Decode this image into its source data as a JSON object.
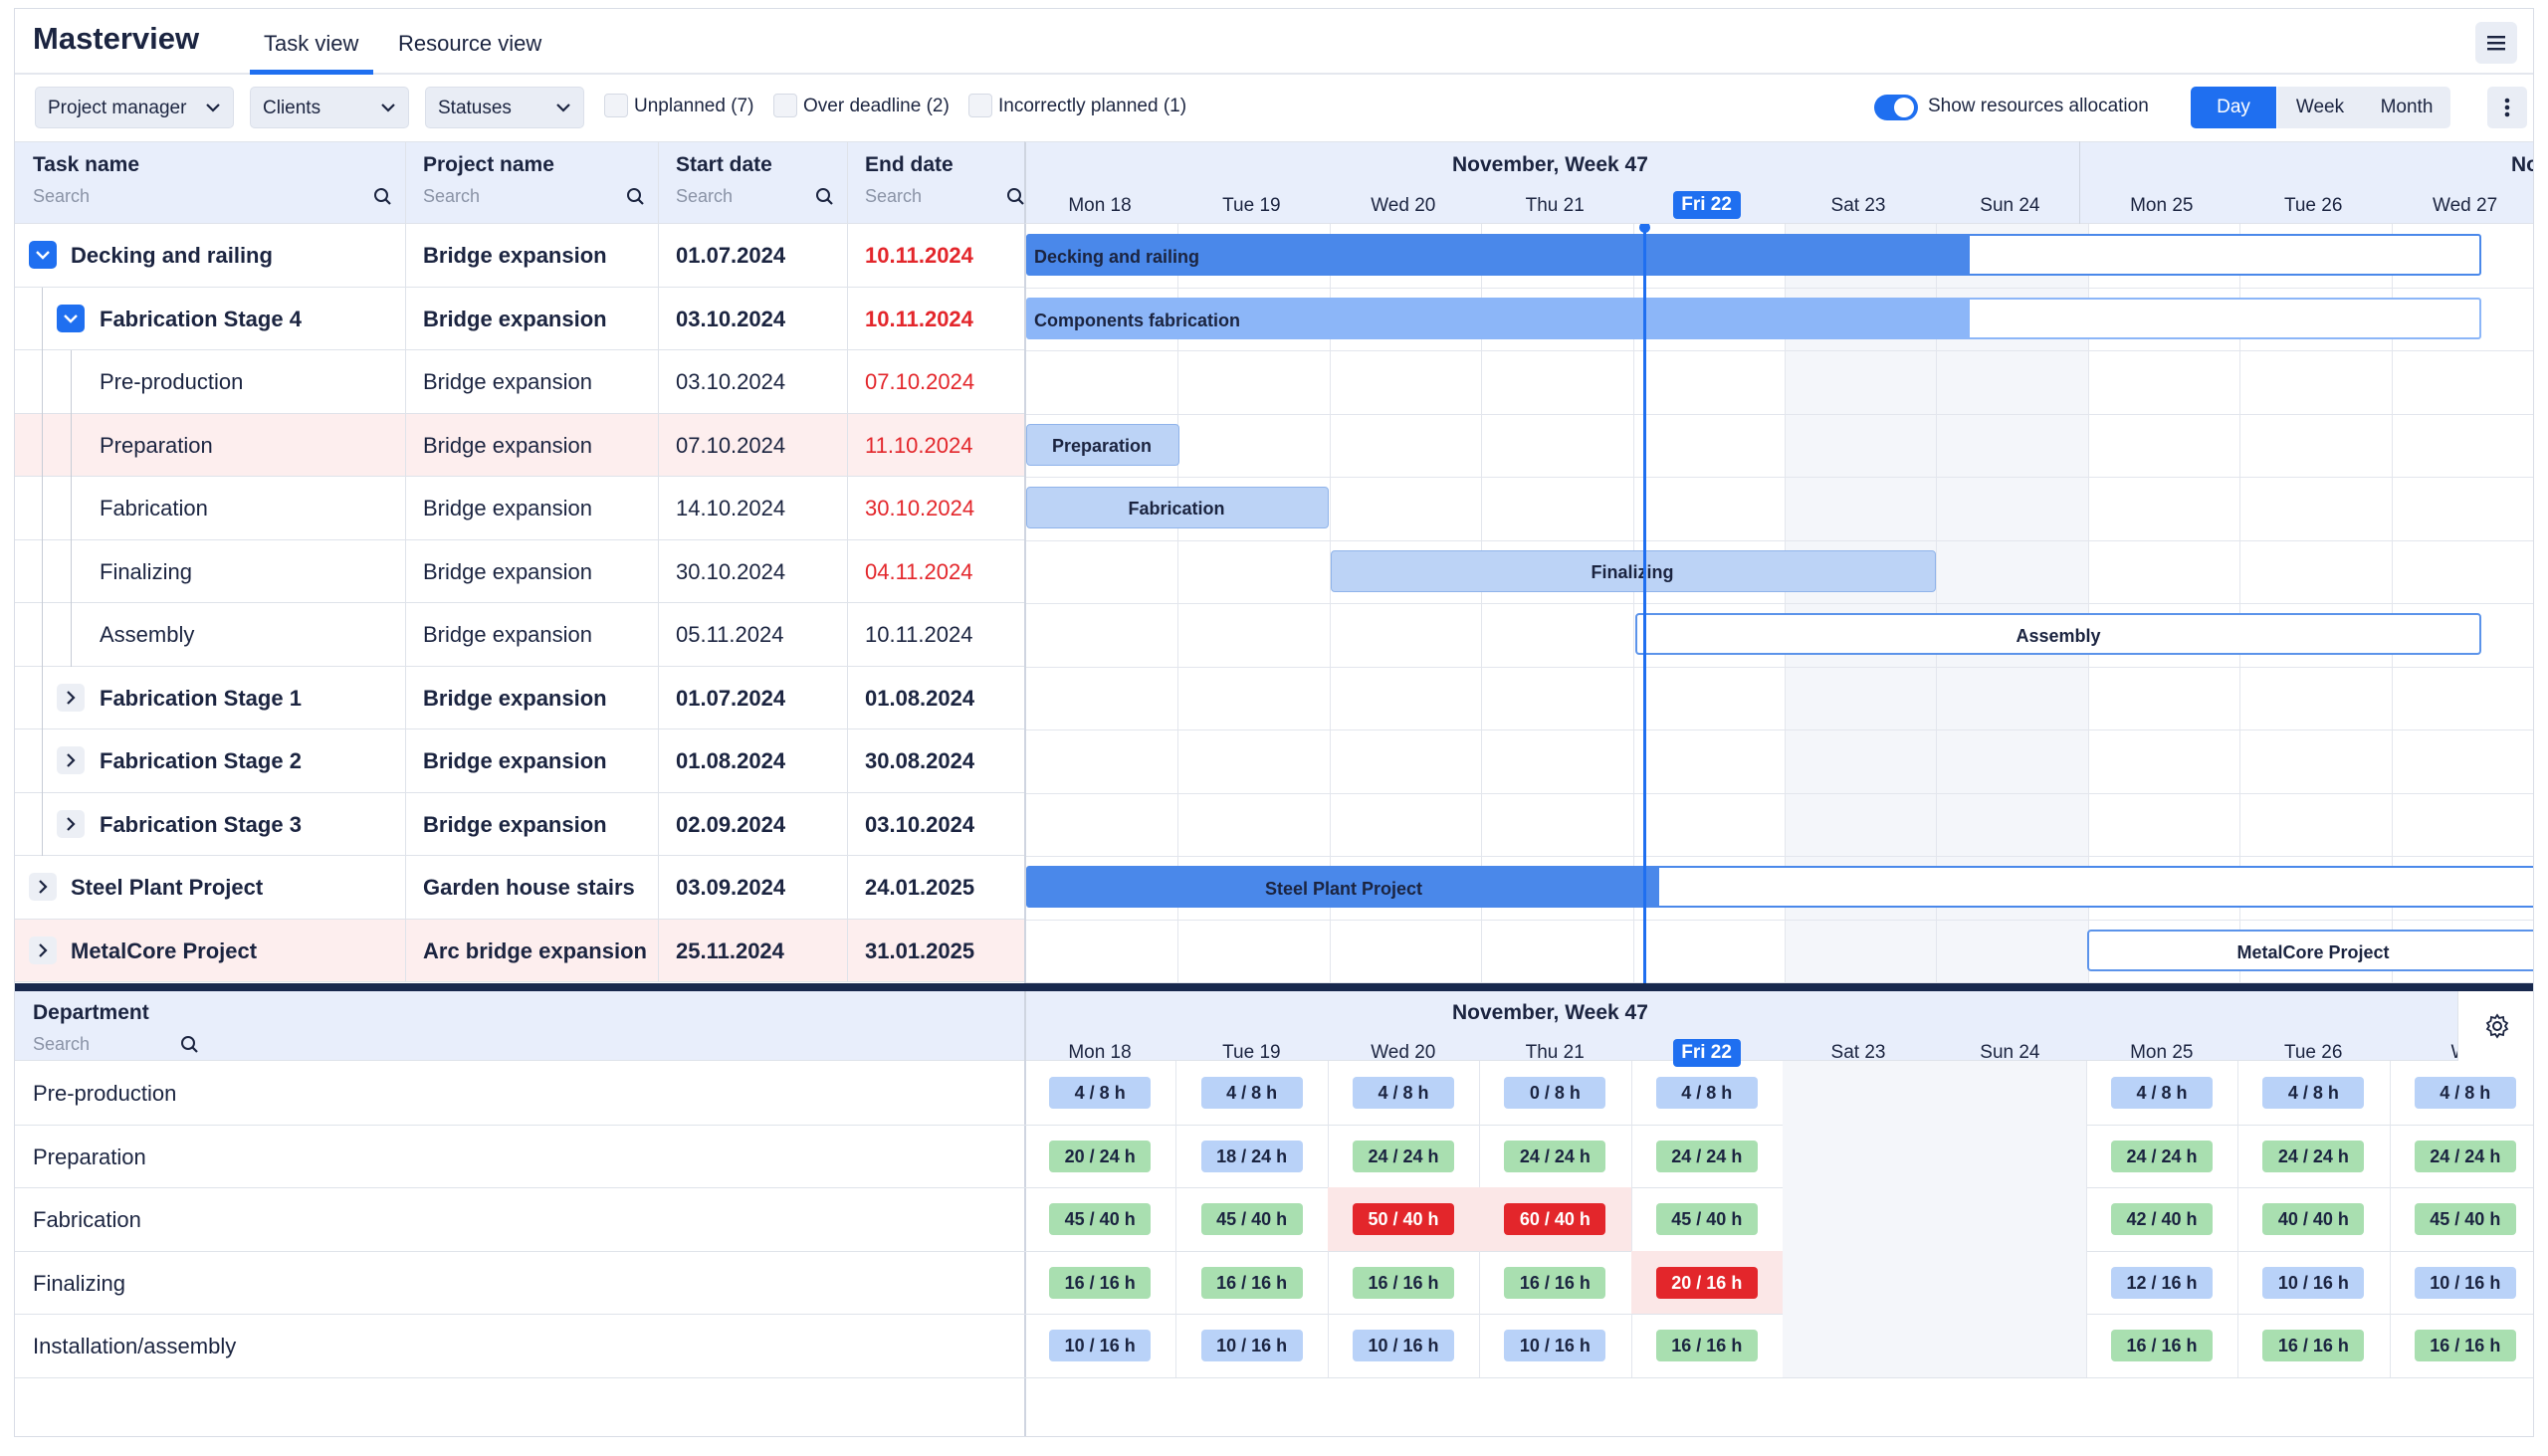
{
  "app": {
    "title": "Masterview"
  },
  "tabs": [
    {
      "label": "Task view",
      "active": true
    },
    {
      "label": "Resource view",
      "active": false
    }
  ],
  "toolbar": {
    "dropdowns": [
      {
        "label": "Project manager"
      },
      {
        "label": "Clients"
      },
      {
        "label": "Statuses"
      }
    ],
    "filters": [
      {
        "label": "Unplanned (7)"
      },
      {
        "label": "Over deadline (2)"
      },
      {
        "label": "Incorrectly planned (1)"
      }
    ],
    "toggle_label": "Show resources allocation",
    "toggle_on": true,
    "views": [
      {
        "label": "Day",
        "active": true
      },
      {
        "label": "Week",
        "active": false
      },
      {
        "label": "Month",
        "active": false
      }
    ]
  },
  "task_table": {
    "columns": [
      {
        "label": "Task name",
        "placeholder": "Search"
      },
      {
        "label": "Project name",
        "placeholder": "Search"
      },
      {
        "label": "Start date",
        "placeholder": "Search"
      },
      {
        "label": "End date",
        "placeholder": "Search"
      }
    ],
    "rows": [
      {
        "task": "Decking and railing",
        "project": "Bridge expansion",
        "start": "01.07.2024",
        "end": "10.11.2024",
        "level": 0,
        "expand": "open",
        "bold": true,
        "end_overdue": true,
        "highlight": false
      },
      {
        "task": "Fabrication Stage 4",
        "project": "Bridge expansion",
        "start": "03.10.2024",
        "end": "10.11.2024",
        "level": 1,
        "expand": "open",
        "bold": true,
        "end_overdue": true,
        "highlight": false
      },
      {
        "task": "Pre-production",
        "project": "Bridge expansion",
        "start": "03.10.2024",
        "end": "07.10.2024",
        "level": 2,
        "expand": "none",
        "bold": false,
        "end_overdue": true,
        "highlight": false
      },
      {
        "task": "Preparation",
        "project": "Bridge expansion",
        "start": "07.10.2024",
        "end": "11.10.2024",
        "level": 2,
        "expand": "none",
        "bold": false,
        "end_overdue": true,
        "highlight": true
      },
      {
        "task": "Fabrication",
        "project": "Bridge expansion",
        "start": "14.10.2024",
        "end": "30.10.2024",
        "level": 2,
        "expand": "none",
        "bold": false,
        "end_overdue": true,
        "highlight": false
      },
      {
        "task": "Finalizing",
        "project": "Bridge expansion",
        "start": "30.10.2024",
        "end": "04.11.2024",
        "level": 2,
        "expand": "none",
        "bold": false,
        "end_overdue": true,
        "highlight": false
      },
      {
        "task": "Assembly",
        "project": "Bridge expansion",
        "start": "05.11.2024",
        "end": "10.11.2024",
        "level": 2,
        "expand": "none",
        "bold": false,
        "end_overdue": false,
        "highlight": false
      },
      {
        "task": "Fabrication Stage 1",
        "project": "Bridge expansion",
        "start": "01.07.2024",
        "end": "01.08.2024",
        "level": 1,
        "expand": "closed",
        "bold": true,
        "end_overdue": false,
        "highlight": false
      },
      {
        "task": "Fabrication Stage 2",
        "project": "Bridge expansion",
        "start": "01.08.2024",
        "end": "30.08.2024",
        "level": 1,
        "expand": "closed",
        "bold": true,
        "end_overdue": false,
        "highlight": false
      },
      {
        "task": "Fabrication Stage 3",
        "project": "Bridge expansion",
        "start": "02.09.2024",
        "end": "03.10.2024",
        "level": 1,
        "expand": "closed",
        "bold": true,
        "end_overdue": false,
        "highlight": false
      },
      {
        "task": "Steel Plant Project",
        "project": "Garden house stairs",
        "start": "03.09.2024",
        "end": "24.01.2025",
        "level": 0,
        "expand": "closed",
        "bold": true,
        "end_overdue": false,
        "highlight": false
      },
      {
        "task": "MetalCore Project",
        "project": "Arc bridge expansion",
        "start": "25.11.2024",
        "end": "31.01.2025",
        "level": 0,
        "expand": "closed",
        "bold": true,
        "end_overdue": false,
        "highlight": true
      }
    ]
  },
  "timeline": {
    "week_label": "November, Week 47",
    "next_week_label": "No",
    "days": [
      "Mon 18",
      "Tue 19",
      "Wed 20",
      "Thu 21",
      "Fri 22",
      "Sat 23",
      "Sun 24",
      "Mon 25",
      "Tue 26",
      "Wed 27"
    ],
    "today": "Fri 22",
    "bars": [
      {
        "label": "Decking and railing",
        "row": 0,
        "style": "dark"
      },
      {
        "label": "Components fabrication",
        "row": 1,
        "style": "mid"
      },
      {
        "label": "Preparation",
        "row": 3,
        "style": "light"
      },
      {
        "label": "Fabrication",
        "row": 4,
        "style": "light"
      },
      {
        "label": "Finalizing",
        "row": 5,
        "style": "light"
      },
      {
        "label": "Assembly",
        "row": 6,
        "style": "outline"
      },
      {
        "label": "Steel Plant Project",
        "row": 10,
        "style": "dark"
      },
      {
        "label": "MetalCore Project",
        "row": 11,
        "style": "outline"
      }
    ]
  },
  "resources": {
    "column_label": "Department",
    "placeholder": "Search",
    "week_label": "November, Week 47",
    "days": [
      "Mon 18",
      "Tue 19",
      "Wed 20",
      "Thu 21",
      "Fri 22",
      "Sat 23",
      "Sun 24",
      "Mon 25",
      "Tue 26",
      "We"
    ],
    "departments": [
      {
        "name": "Pre-production",
        "cells": [
          {
            "t": "4 / 8 h",
            "c": "b"
          },
          {
            "t": "4 / 8 h",
            "c": "b"
          },
          {
            "t": "4 / 8 h",
            "c": "b"
          },
          {
            "t": "0 / 8 h",
            "c": "b"
          },
          {
            "t": "4 / 8 h",
            "c": "b"
          },
          null,
          null,
          {
            "t": "4 / 8 h",
            "c": "b"
          },
          {
            "t": "4 / 8 h",
            "c": "b"
          },
          {
            "t": "4 / 8 h",
            "c": "b"
          }
        ]
      },
      {
        "name": "Preparation",
        "cells": [
          {
            "t": "20 / 24 h",
            "c": "g"
          },
          {
            "t": "18 / 24 h",
            "c": "b"
          },
          {
            "t": "24 / 24 h",
            "c": "g"
          },
          {
            "t": "24 / 24 h",
            "c": "g"
          },
          {
            "t": "24 / 24 h",
            "c": "g"
          },
          null,
          null,
          {
            "t": "24 / 24 h",
            "c": "g"
          },
          {
            "t": "24 / 24 h",
            "c": "g"
          },
          {
            "t": "24 / 24 h",
            "c": "g"
          }
        ]
      },
      {
        "name": "Fabrication",
        "cells": [
          {
            "t": "45 / 40 h",
            "c": "g"
          },
          {
            "t": "45 / 40 h",
            "c": "g"
          },
          {
            "t": "50 / 40 h",
            "c": "r"
          },
          {
            "t": "60 / 40 h",
            "c": "r"
          },
          {
            "t": "45 / 40 h",
            "c": "g"
          },
          null,
          null,
          {
            "t": "42 / 40 h",
            "c": "g"
          },
          {
            "t": "40 / 40 h",
            "c": "g"
          },
          {
            "t": "45 / 40 h",
            "c": "g"
          }
        ]
      },
      {
        "name": "Finalizing",
        "cells": [
          {
            "t": "16 / 16 h",
            "c": "g"
          },
          {
            "t": "16 / 16 h",
            "c": "g"
          },
          {
            "t": "16 / 16 h",
            "c": "g"
          },
          {
            "t": "16 / 16 h",
            "c": "g"
          },
          {
            "t": "20 / 16 h",
            "c": "r"
          },
          null,
          null,
          {
            "t": "12 / 16 h",
            "c": "b"
          },
          {
            "t": "10 / 16 h",
            "c": "b"
          },
          {
            "t": "10 / 16 h",
            "c": "b"
          }
        ]
      },
      {
        "name": "Installation/assembly",
        "cells": [
          {
            "t": "10 / 16 h",
            "c": "b"
          },
          {
            "t": "10 / 16 h",
            "c": "b"
          },
          {
            "t": "10 / 16 h",
            "c": "b"
          },
          {
            "t": "10 / 16 h",
            "c": "b"
          },
          {
            "t": "16 / 16 h",
            "c": "g"
          },
          null,
          null,
          {
            "t": "16 / 16 h",
            "c": "g"
          },
          {
            "t": "16 / 16 h",
            "c": "g"
          },
          {
            "t": "16 / 16 h",
            "c": "g"
          }
        ]
      }
    ]
  },
  "colors": {
    "accent": "#1f6ff0",
    "overdue": "#e3262b",
    "bar_dark": "#4a88ea",
    "bar_mid": "#8cb6f8",
    "bar_light": "#bcd3f6",
    "chip_blue": "#b9d2f8",
    "chip_green": "#a9dfb0",
    "chip_red": "#e3262b",
    "row_highlight": "#fdeeee"
  }
}
